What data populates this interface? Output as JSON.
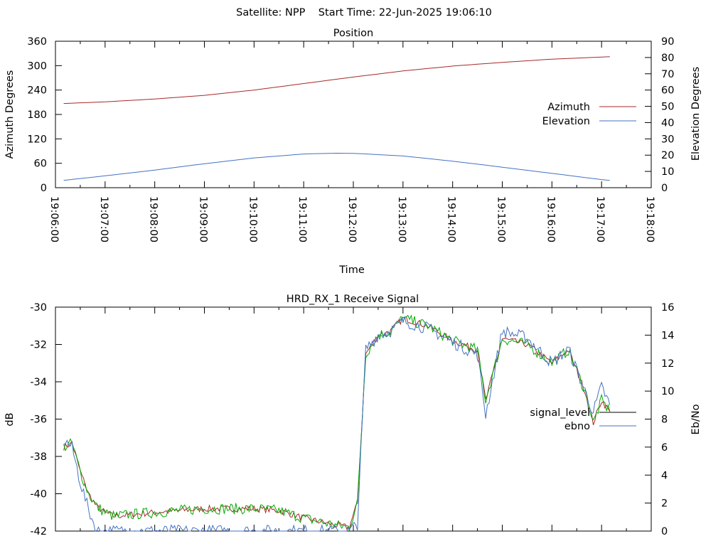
{
  "header": {
    "text": "Satellite: NPP    Start Time: 22-Jun-2025 19:06:10"
  },
  "colors": {
    "azimuth": "#a52a2a",
    "elevation": "#4472c4",
    "signal_level": "#000000",
    "ebno_blue": "#4472c4",
    "ebno_green": "#00aa00",
    "signal_red": "#a52a2a"
  },
  "chart_data": [
    {
      "type": "line",
      "title": "Position",
      "xlabel": "Time",
      "ylabel": "Azimuth Degrees",
      "y2label": "Elevation Degrees",
      "xlim": [
        "19:06:00",
        "19:18:00"
      ],
      "ylim": [
        0,
        360
      ],
      "y2lim": [
        0,
        90
      ],
      "x_ticks": [
        "19:06:00",
        "19:07:00",
        "19:08:00",
        "19:09:00",
        "19:10:00",
        "19:11:00",
        "19:12:00",
        "19:13:00",
        "19:14:00",
        "19:15:00",
        "19:16:00",
        "19:17:00",
        "19:18:00"
      ],
      "y_ticks": [
        "0",
        "60",
        "120",
        "180",
        "240",
        "300",
        "360"
      ],
      "y2_ticks": [
        "0",
        "10",
        "20",
        "30",
        "40",
        "50",
        "60",
        "70",
        "80",
        "90"
      ],
      "legend_placement": "right",
      "grid": false,
      "series": [
        {
          "name": "Azimuth",
          "axis": "y",
          "x": [
            "19:06:10",
            "19:07:00",
            "19:08:00",
            "19:09:00",
            "19:10:00",
            "19:11:00",
            "19:12:00",
            "19:13:00",
            "19:14:00",
            "19:15:00",
            "19:16:00",
            "19:17:00",
            "19:17:10"
          ],
          "values": [
            207,
            211,
            218,
            227,
            240,
            256,
            272,
            287,
            299,
            308,
            316,
            321,
            322
          ]
        },
        {
          "name": "Elevation",
          "axis": "y2",
          "x": [
            "19:06:10",
            "19:07:00",
            "19:08:00",
            "19:09:00",
            "19:10:00",
            "19:11:00",
            "19:11:40",
            "19:12:00",
            "19:13:00",
            "19:14:00",
            "19:15:00",
            "19:16:00",
            "19:17:00",
            "19:17:10"
          ],
          "values": [
            4.5,
            7.3,
            10.8,
            14.7,
            18.3,
            20.7,
            21.2,
            21.1,
            19.5,
            16.3,
            12.6,
            8.8,
            5.0,
            4.5
          ]
        }
      ]
    },
    {
      "type": "line",
      "title": "HRD_RX_1 Receive Signal",
      "ylabel": "dB",
      "y2label": "Eb/No",
      "xlim": [
        "19:06:00",
        "19:18:00"
      ],
      "ylim": [
        -42,
        -30
      ],
      "y2lim": [
        0,
        16
      ],
      "y_ticks": [
        "-30",
        "-32",
        "-34",
        "-36",
        "-38",
        "-40",
        "-42"
      ],
      "y2_ticks": [
        "0",
        "2",
        "4",
        "6",
        "8",
        "10",
        "12",
        "14",
        "16"
      ],
      "legend_placement": "right",
      "grid": false,
      "series": [
        {
          "name": "signal_level",
          "axis": "y",
          "x": [
            "19:06:10",
            "19:06:20",
            "19:06:30",
            "19:06:40",
            "19:06:50",
            "19:07:00",
            "19:07:10",
            "19:08:00",
            "19:09:00",
            "19:10:00",
            "19:10:30",
            "19:11:00",
            "19:11:40",
            "19:11:55",
            "19:12:05",
            "19:12:15",
            "19:12:30",
            "19:12:45",
            "19:13:00",
            "19:13:30",
            "19:14:00",
            "19:14:30",
            "19:14:40",
            "19:15:00",
            "19:15:30",
            "19:16:00",
            "19:16:20",
            "19:16:40",
            "19:16:50",
            "19:17:00",
            "19:17:10"
          ],
          "values": [
            -37.5,
            -37.3,
            -38.8,
            -40.0,
            -40.7,
            -41.0,
            -41.2,
            -41.0,
            -40.8,
            -40.8,
            -40.9,
            -41.3,
            -41.7,
            -41.8,
            -40.5,
            -32.5,
            -31.5,
            -31.3,
            -30.6,
            -31.0,
            -31.8,
            -32.3,
            -35.0,
            -31.7,
            -32.0,
            -33.0,
            -32.3,
            -34.5,
            -36.2,
            -35.0,
            -35.6
          ]
        },
        {
          "name": "ebno",
          "axis": "y2",
          "x": [
            "19:06:10",
            "19:06:20",
            "19:06:30",
            "19:06:40",
            "19:06:50",
            "19:07:00",
            "19:07:10",
            "19:11:55",
            "19:12:05",
            "19:12:15",
            "19:12:30",
            "19:12:45",
            "19:13:00",
            "19:13:30",
            "19:14:00",
            "19:14:30",
            "19:14:40",
            "19:15:00",
            "19:15:30",
            "19:16:00",
            "19:16:20",
            "19:16:40",
            "19:16:50",
            "19:17:00",
            "19:17:10"
          ],
          "values": [
            6.5,
            6.0,
            3.5,
            1.5,
            0.0,
            0.0,
            0.0,
            0.0,
            0.5,
            13.0,
            14.0,
            14.3,
            15.0,
            14.5,
            13.5,
            12.6,
            8.3,
            14.3,
            13.8,
            12.0,
            13.0,
            10.0,
            8.5,
            10.3,
            9.0
          ]
        }
      ]
    }
  ]
}
